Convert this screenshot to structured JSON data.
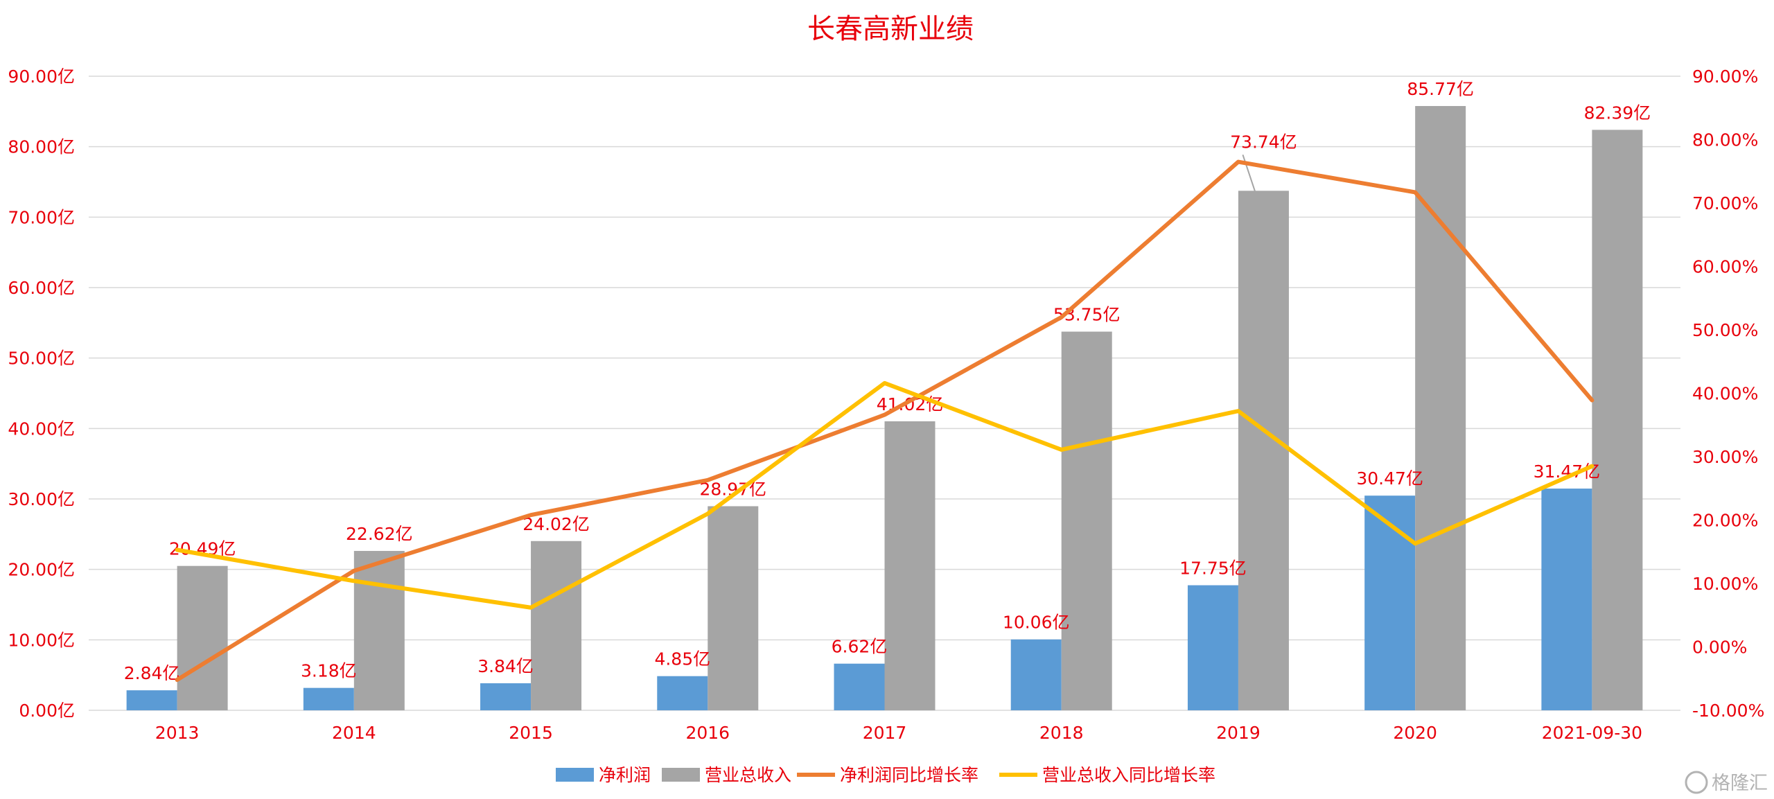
{
  "chart_data": {
    "type": "bar",
    "title": "长春高新业绩",
    "categories": [
      "2013",
      "2014",
      "2015",
      "2016",
      "2017",
      "2018",
      "2019",
      "2020",
      "2021-09-30"
    ],
    "y_left": {
      "ylim": [
        0,
        90
      ],
      "ticks": [
        "0.00亿",
        "10.00亿",
        "20.00亿",
        "30.00亿",
        "40.00亿",
        "50.00亿",
        "60.00亿",
        "70.00亿",
        "80.00亿",
        "90.00亿"
      ]
    },
    "y_right": {
      "ylim": [
        -10,
        90
      ],
      "ticks": [
        "-10.00%",
        "0.00%",
        "10.00%",
        "20.00%",
        "30.00%",
        "40.00%",
        "50.00%",
        "60.00%",
        "70.00%",
        "80.00%",
        "90.00%"
      ]
    },
    "series": [
      {
        "name": "净利润",
        "type": "bar",
        "axis": "left",
        "color": "#5b9bd5",
        "values": [
          2.84,
          3.18,
          3.84,
          4.85,
          6.62,
          10.06,
          17.75,
          30.47,
          31.47
        ],
        "labels": [
          "2.84亿",
          "3.18亿",
          "3.84亿",
          "4.85亿",
          "6.62亿",
          "10.06亿",
          "17.75亿",
          "30.47亿",
          "31.47亿"
        ]
      },
      {
        "name": "营业总收入",
        "type": "bar",
        "axis": "left",
        "color": "#a5a5a5",
        "values": [
          20.49,
          22.62,
          24.02,
          28.97,
          41.02,
          53.75,
          73.74,
          85.77,
          82.39
        ],
        "labels": [
          "20.49亿",
          "22.62亿",
          "24.02亿",
          "28.97亿",
          "41.02亿",
          "53.75亿",
          "73.74亿",
          "85.77亿",
          "82.39亿"
        ]
      },
      {
        "name": "净利润同比增长率",
        "type": "line",
        "axis": "right",
        "color": "#ed7d31",
        "values": [
          -5.2,
          12.0,
          20.8,
          26.3,
          36.6,
          52.0,
          76.5,
          71.7,
          38.9
        ]
      },
      {
        "name": "营业总收入同比增长率",
        "type": "line",
        "axis": "right",
        "color": "#ffc000",
        "values": [
          15.3,
          10.4,
          6.2,
          21.0,
          41.6,
          31.1,
          37.2,
          16.3,
          28.5
        ]
      }
    ],
    "grid": true,
    "legend": "bottom-center"
  },
  "watermark": "格隆汇"
}
